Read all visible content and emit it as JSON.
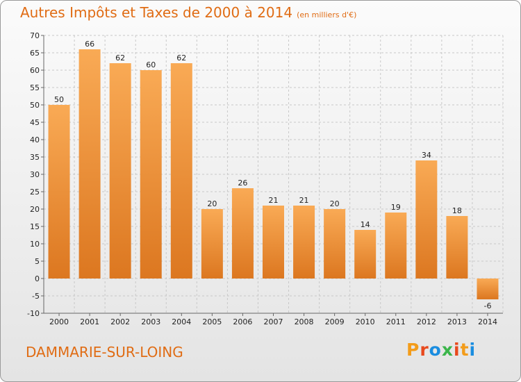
{
  "title": "Autres Impôts et Taxes de 2000 à 2014",
  "unit": "(en milliers d'€)",
  "place": "DAMMARIE-SUR-LOING",
  "logo": {
    "letters": [
      "P",
      "r",
      "o",
      "x",
      "i",
      "t",
      "i"
    ],
    "colors": [
      "#f39c1a",
      "#e8491d",
      "#1a8de0",
      "#3bb54a",
      "#e8491d",
      "#f39c1a",
      "#1a8de0"
    ]
  },
  "colors": {
    "accent": "#e06c14",
    "bar_light": "#f9aa55",
    "bar_dark": "#dc7720"
  },
  "chart_data": {
    "type": "bar",
    "categories": [
      "2000",
      "2001",
      "2002",
      "2003",
      "2004",
      "2005",
      "2006",
      "2007",
      "2008",
      "2009",
      "2010",
      "2011",
      "2012",
      "2013",
      "2014"
    ],
    "values": [
      50,
      66,
      62,
      60,
      62,
      20,
      26,
      21,
      21,
      20,
      14,
      19,
      34,
      18,
      -6
    ],
    "ylim": [
      -10,
      70
    ],
    "yticks": [
      -10,
      -5,
      0,
      5,
      10,
      15,
      20,
      25,
      30,
      35,
      40,
      45,
      50,
      55,
      60,
      65,
      70
    ],
    "grid": true
  }
}
